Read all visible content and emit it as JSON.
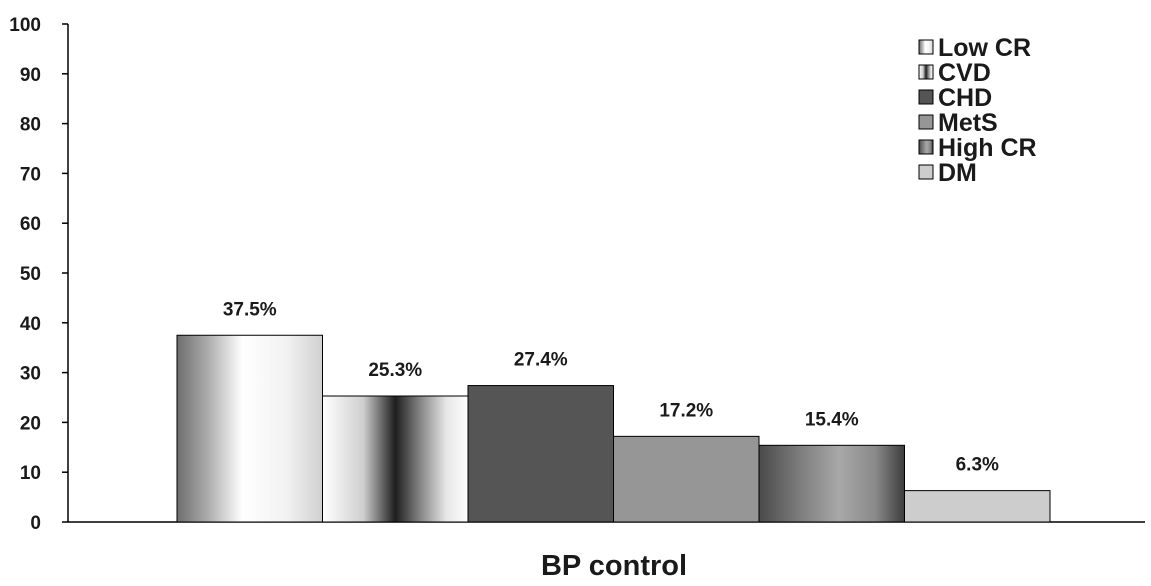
{
  "chart_data": {
    "type": "bar",
    "title": "",
    "xlabel": "BP control",
    "ylabel": "",
    "ylim": [
      0,
      100
    ],
    "yticks": [
      0,
      10,
      20,
      30,
      40,
      50,
      60,
      70,
      80,
      90,
      100
    ],
    "categories": [
      "BP control"
    ],
    "series": [
      {
        "name": "Low CR",
        "values": [
          37.5
        ],
        "label": "37.5%",
        "fill": "low-cr"
      },
      {
        "name": "CVD",
        "values": [
          25.3
        ],
        "label": "25.3%",
        "fill": "cvd"
      },
      {
        "name": "CHD",
        "values": [
          27.4
        ],
        "label": "27.4%",
        "fill": "chd"
      },
      {
        "name": "MetS",
        "values": [
          17.2
        ],
        "label": "17.2%",
        "fill": "mets"
      },
      {
        "name": "High CR",
        "values": [
          15.4
        ],
        "label": "15.4%",
        "fill": "high-cr"
      },
      {
        "name": "DM",
        "values": [
          6.3
        ],
        "label": "6.3%",
        "fill": "dm"
      }
    ],
    "legend_position": "top-right",
    "grid": false
  }
}
